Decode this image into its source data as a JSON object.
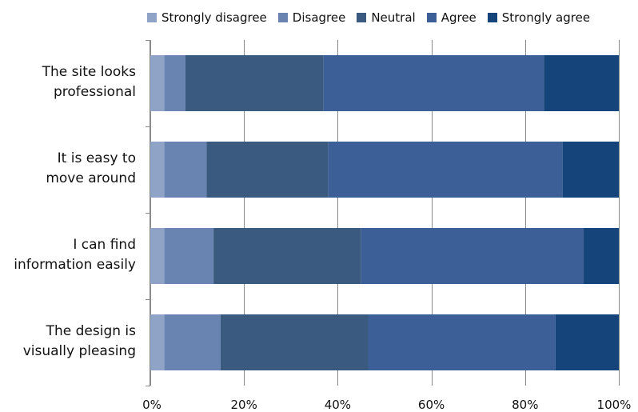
{
  "chart_data": {
    "type": "bar",
    "orientation": "horizontal",
    "stacked": "percent",
    "categories": [
      "The site looks professional",
      "It is easy to move around",
      "I can find information easily",
      "The design is visually pleasing"
    ],
    "category_lines": [
      [
        "The site looks",
        "professional"
      ],
      [
        "It is easy to",
        "move around"
      ],
      [
        "I can find",
        "information easily"
      ],
      [
        "The design is",
        "visually pleasing"
      ]
    ],
    "series": [
      {
        "name": "Strongly disagree",
        "color": "#8fa3c6",
        "values": [
          3,
          3,
          3,
          3
        ]
      },
      {
        "name": "Disagree",
        "color": "#6a84b2",
        "values": [
          4.5,
          9,
          10.5,
          12
        ]
      },
      {
        "name": "Neutral",
        "color": "#3a5a80",
        "values": [
          29.5,
          26,
          31.5,
          31.5
        ]
      },
      {
        "name": "Agree",
        "color": "#3c5f98",
        "values": [
          47,
          50,
          47.5,
          40
        ]
      },
      {
        "name": "Strongly agree",
        "color": "#15447a",
        "values": [
          16,
          12,
          7.5,
          13.5
        ]
      }
    ],
    "xlim": [
      0,
      100
    ],
    "x_ticks": [
      "0%",
      "20%",
      "40%",
      "60%",
      "80%",
      "100%"
    ],
    "grid": true,
    "legend_position": "top"
  }
}
